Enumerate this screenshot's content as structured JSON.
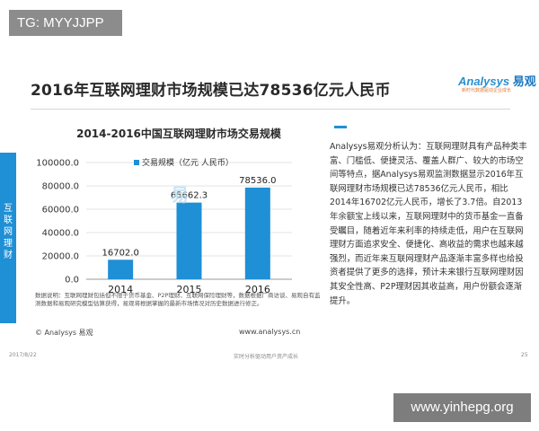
{
  "watermark_top": "TG: MYYJJPP",
  "watermark_bottom": "www.yinhepg.org",
  "slide_title": "2016年互联网理财市场规模已达78536亿元人民币",
  "logo": {
    "name_en": "Analysys",
    "name_cn": "易观",
    "tagline": "新时代数据驱动企业成长"
  },
  "side_label": "互联网理财",
  "chart_watermark": "易",
  "chart_notes": "数据说明：互联网理财包括但不限于货币基金、P2P理财、互联网保险理财等，数据根据厂商访谈、易观自有监测数据和易观研究模型估算获得，易观将根据掌握的最新市场情况对历史数据进行修正。",
  "copyright": "© Analysys 易观",
  "source_url": "www.analysys.cn",
  "analysis_text": "Analysys易观分析认为：互联网理财具有产品种类丰富、门槛低、便捷灵活、覆盖人群广、较大的市场空间等特点，据Analysys易观监测数据显示2016年互联网理财市场规模已达78536亿元人民币，相比2014年16702亿元人民币，增长了3.7倍。自2013年余额宝上线以来，互联网理财中的货币基金一直备受瞩目，随着近年来利率的持续走低，用户在互联网理财方面追求安全、便捷化、高收益的需求也越来越强烈，而近年来互联网理财产品逐渐丰富多样也给投资者提供了更多的选择，预计未来银行互联网理财因其安全性高、P2P理财因其收益高，用户份额会逐渐提升。",
  "footer": {
    "date": "2017/8/22",
    "middle": "实时分析驱动用户资产成长",
    "page": "25"
  },
  "colors": {
    "bar": "#1f8fd6",
    "accent": "#1f8fd6"
  },
  "chart_data": {
    "type": "bar",
    "title": "2014-2016中国互联网理财市场交易规模",
    "categories": [
      "2014",
      "2015",
      "2016"
    ],
    "series": [
      {
        "name": "交易规模（亿元 人民币）",
        "values": [
          16702.0,
          65662.3,
          78536.0
        ]
      }
    ],
    "value_labels": [
      "16702.0",
      "65662.3",
      "78536.0"
    ],
    "y_ticks": [
      "0.0",
      "20000.0",
      "40000.0",
      "60000.0",
      "80000.0",
      "100000.0"
    ],
    "ylim": [
      0,
      100000
    ],
    "grid": true,
    "legend_position": "top-left"
  }
}
